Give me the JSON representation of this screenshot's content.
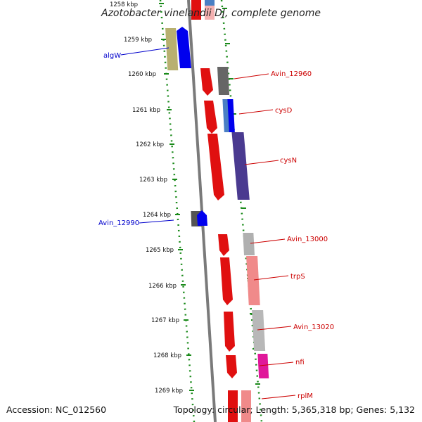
{
  "title": "Azotobacter vinelandii DJ, complete genome",
  "footer": {
    "accession": "Accession: NC_012560",
    "topology": "Topology: circular; Length: 5,365,318 bp; Genes: 5,132"
  },
  "ticks": [
    "1258 kbp",
    "1259 kbp",
    "1260 kbp",
    "1261 kbp",
    "1262 kbp",
    "1263 kbp",
    "1264 kbp",
    "1265 kbp",
    "1266 kbp",
    "1267 kbp",
    "1268 kbp",
    "1269 kbp"
  ],
  "labels": {
    "algW": "algW",
    "avin12960": "Avin_12960",
    "cysD": "cysD",
    "cysN": "cysN",
    "avin12990": "Avin_12990",
    "avin13000": "Avin_13000",
    "trpS": "trpS",
    "avin13020": "Avin_13020",
    "nfi": "nfi",
    "rplM": "rplM"
  },
  "colors": {
    "forward_label": "#0000cc",
    "reverse_label": "#cc0000",
    "gc_dots": "#1a8a1a",
    "axis": "#7a7a7a"
  }
}
